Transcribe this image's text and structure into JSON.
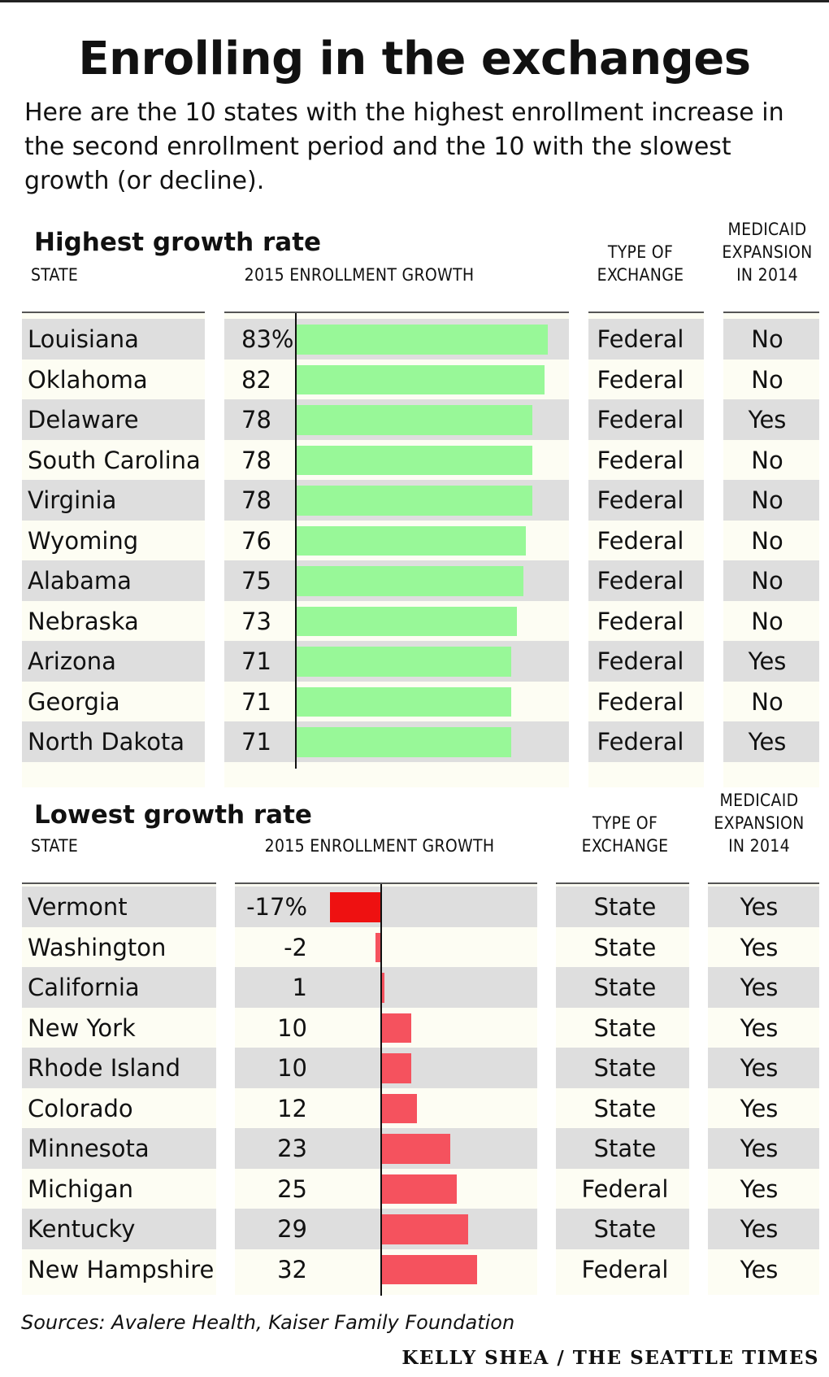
{
  "title": "Enrolling in the exchanges",
  "subtitle": "Here are the 10 states with the highest enrollment increase in the second enrollment period and the 10 with the slowest growth (or decline).",
  "headers": {
    "state": "STATE",
    "growth": "2015 ENROLLMENT GROWTH",
    "exchange_1": "TYPE OF",
    "exchange_2": "EXCHANGE",
    "medicaid_1": "MEDICAID",
    "medicaid_2": "EXPANSION",
    "medicaid_3": "IN 2014"
  },
  "colors": {
    "highest_bar": "#98f898",
    "lowest_bar_negative": "#ee1111",
    "lowest_bar_positive": "#f5525e",
    "stripe": "#dedede",
    "column_tint": "#fdfdf3"
  },
  "chart_data": [
    {
      "type": "bar",
      "title": "Highest growth rate",
      "xlabel": "2015 ENROLLMENT GROWTH",
      "unit": "%",
      "xlim": [
        0,
        90
      ],
      "categories": [
        "Louisiana",
        "Oklahoma",
        "Delaware",
        "South Carolina",
        "Virginia",
        "Wyoming",
        "Alabama",
        "Nebraska",
        "Arizona",
        "Georgia",
        "North Dakota"
      ],
      "labels": [
        "83%",
        "82",
        "78",
        "78",
        "78",
        "76",
        "75",
        "73",
        "71",
        "71",
        "71"
      ],
      "values": [
        83,
        82,
        78,
        78,
        78,
        76,
        75,
        73,
        71,
        71,
        71
      ],
      "exchange": [
        "Federal",
        "Federal",
        "Federal",
        "Federal",
        "Federal",
        "Federal",
        "Federal",
        "Federal",
        "Federal",
        "Federal",
        "Federal"
      ],
      "medicaid": [
        "No",
        "No",
        "Yes",
        "No",
        "No",
        "No",
        "No",
        "No",
        "Yes",
        "No",
        "Yes"
      ]
    },
    {
      "type": "bar",
      "title": "Lowest growth rate",
      "xlabel": "2015 ENROLLMENT GROWTH",
      "unit": "%",
      "xlim": [
        -17,
        32
      ],
      "categories": [
        "Vermont",
        "Washington",
        "California",
        "New York",
        "Rhode Island",
        "Colorado",
        "Minnesota",
        "Michigan",
        "Kentucky",
        "New Hampshire"
      ],
      "labels": [
        "-17%",
        "-2",
        "1",
        "10",
        "10",
        "12",
        "23",
        "25",
        "29",
        "32"
      ],
      "values": [
        -17,
        -2,
        1,
        10,
        10,
        12,
        23,
        25,
        29,
        32
      ],
      "exchange": [
        "State",
        "State",
        "State",
        "State",
        "State",
        "State",
        "State",
        "Federal",
        "State",
        "Federal"
      ],
      "medicaid": [
        "Yes",
        "Yes",
        "Yes",
        "Yes",
        "Yes",
        "Yes",
        "Yes",
        "Yes",
        "Yes",
        "Yes"
      ]
    }
  ],
  "sources": "Sources: Avalere Health, Kaiser Family Foundation",
  "credit": "KELLY SHEA / THE SEATTLE TIMES"
}
